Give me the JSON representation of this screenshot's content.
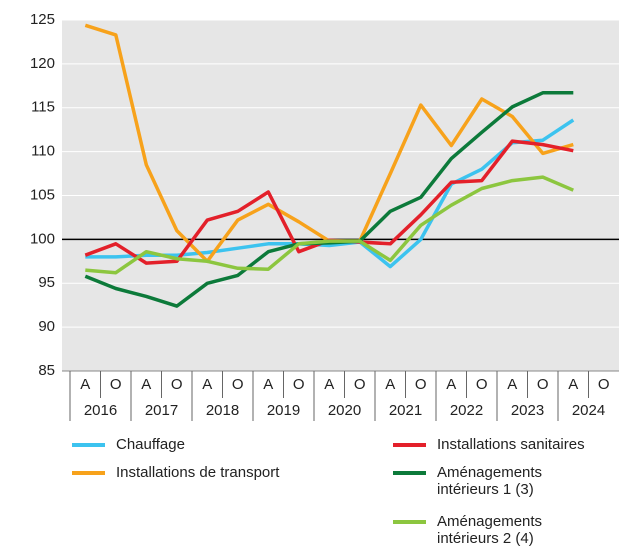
{
  "chart_data": {
    "type": "line",
    "categories": [
      "A",
      "O",
      "A",
      "O",
      "A",
      "O",
      "A",
      "O",
      "A",
      "O",
      "A",
      "O",
      "A",
      "O",
      "A",
      "O",
      "A",
      "O"
    ],
    "years": [
      "2016",
      "2017",
      "2018",
      "2019",
      "2020",
      "2021",
      "2022",
      "2023",
      "2024"
    ],
    "ylim": [
      85,
      125
    ],
    "yticks": [
      85,
      90,
      95,
      100,
      105,
      110,
      115,
      120,
      125
    ],
    "reference_line": 100,
    "grid": true,
    "series": [
      {
        "name": "Chauffage",
        "color": "#3cc3ef",
        "values": [
          98,
          98,
          98.2,
          98.2,
          98.5,
          99,
          99.5,
          99.5,
          99.3,
          99.7,
          96.9,
          100,
          106.3,
          108,
          111,
          111.3,
          113.6,
          null
        ]
      },
      {
        "name": "Installations de transport",
        "color": "#f7a21b",
        "values": [
          124.4,
          123.3,
          108.5,
          101,
          97.5,
          102.2,
          104,
          102,
          99.8,
          99.8,
          107.5,
          115.3,
          110.7,
          116,
          114,
          109.8,
          110.8,
          null
        ]
      },
      {
        "name": "Installations sanitaires",
        "color": "#e3202a",
        "values": [
          98.2,
          99.5,
          97.3,
          97.5,
          102.2,
          103.2,
          105.4,
          98.6,
          99.9,
          99.7,
          99.5,
          102.8,
          106.5,
          106.7,
          111.2,
          110.8,
          110.1,
          null
        ]
      },
      {
        "name": "Aménagements intérieurs 1 (3)",
        "color": "#0c7a3a",
        "values": [
          95.8,
          94.4,
          93.5,
          92.4,
          95,
          95.9,
          98.6,
          99.5,
          99.6,
          99.8,
          103.2,
          104.8,
          109.2,
          112.2,
          115.1,
          116.7,
          116.7,
          null
        ]
      },
      {
        "name": "Aménagements intérieurs 2 (4)",
        "color": "#8cc63f",
        "values": [
          96.5,
          96.2,
          98.6,
          97.8,
          97.5,
          96.7,
          96.6,
          99.5,
          99.8,
          99.8,
          97.6,
          101.6,
          103.9,
          105.8,
          106.7,
          107.1,
          105.6,
          null
        ]
      }
    ]
  }
}
